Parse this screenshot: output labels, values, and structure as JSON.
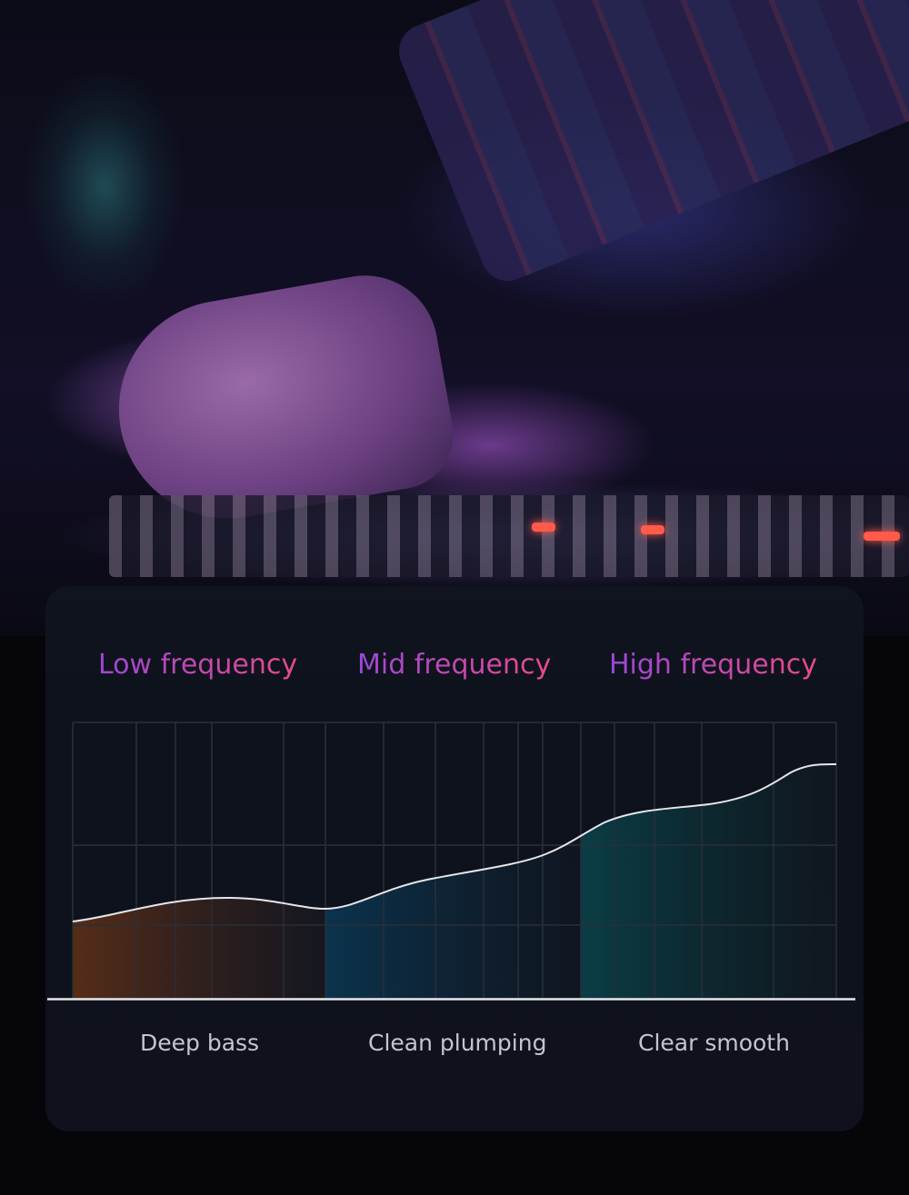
{
  "bands": [
    {
      "title": "Low frequency",
      "label": "Deep bass",
      "fill_color": "#5a2e18"
    },
    {
      "title": "Mid frequency",
      "label": "Clean plumping",
      "fill_color": "#0b3550"
    },
    {
      "title": "High frequency",
      "label": "Clear smooth",
      "fill_color": "#0a4048"
    }
  ],
  "colors": {
    "title_gradient_start": "#9a48d8",
    "title_gradient_end": "#e84a8a",
    "card_background": "#0e121c",
    "curve": "#e6e6ea",
    "grid": "#2a2f38"
  }
}
